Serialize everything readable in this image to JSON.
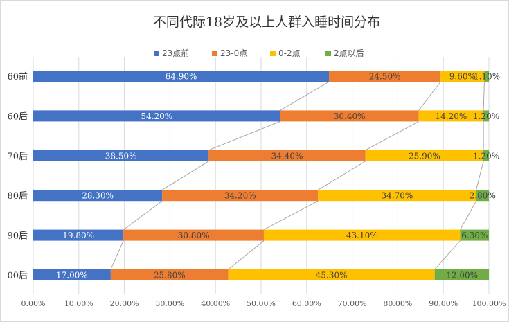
{
  "chart_data": {
    "type": "bar",
    "orientation": "horizontal",
    "stacked": "percent",
    "title": "不同代际18岁及以上人群入睡时间分布",
    "categories": [
      "60前",
      "60后",
      "70后",
      "80后",
      "90后",
      "00后"
    ],
    "series": [
      {
        "name": "23点前",
        "color": "#4472C4",
        "values": [
          64.9,
          54.2,
          38.5,
          28.3,
          19.8,
          17.0
        ]
      },
      {
        "name": "23-0点",
        "color": "#ED7D31",
        "values": [
          24.5,
          30.4,
          34.4,
          34.2,
          30.8,
          25.8
        ]
      },
      {
        "name": "0-2点",
        "color": "#FFC000",
        "values": [
          9.6,
          14.2,
          25.9,
          34.7,
          43.1,
          45.3
        ]
      },
      {
        "name": "2点以后",
        "color": "#70AD47",
        "values": [
          1.1,
          1.2,
          1.2,
          2.8,
          6.3,
          12.0
        ]
      }
    ],
    "data_labels": [
      [
        "64.90%",
        "24.50%",
        "9.60%",
        "1.10%"
      ],
      [
        "54.20%",
        "30.40%",
        "14.20%",
        "1.20%"
      ],
      [
        "38.50%",
        "34.40%",
        "25.90%",
        "1.20%"
      ],
      [
        "28.30%",
        "34.20%",
        "34.70%",
        "2.80%"
      ],
      [
        "19.80%",
        "30.80%",
        "43.10%",
        "6.30%"
      ],
      [
        "17.00%",
        "25.80%",
        "45.30%",
        "12.00%"
      ]
    ],
    "x_ticks": [
      "0.00%",
      "10.00%",
      "20.00%",
      "30.00%",
      "40.00%",
      "50.00%",
      "60.00%",
      "70.00%",
      "80.00%",
      "90.00%",
      "100.00%"
    ],
    "xlim": [
      0,
      100
    ],
    "grid": "vertical",
    "series_lines": true,
    "legend": "top"
  }
}
